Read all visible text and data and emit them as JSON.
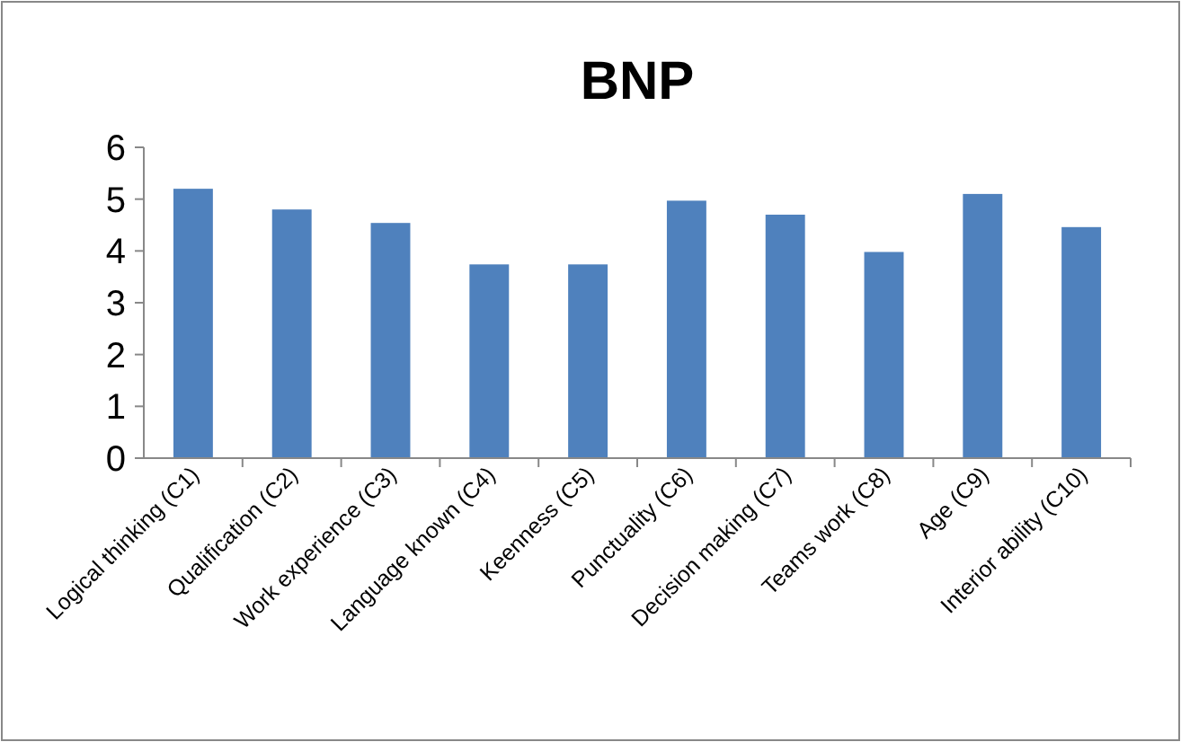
{
  "chart_data": {
    "type": "bar",
    "title": "BNP",
    "categories": [
      "Logical thinking (C1)",
      "Qualification (C2)",
      "Work experience (C3)",
      "Language known (C4)",
      "Keenness (C5)",
      "Punctuality (C6)",
      "Decision making (C7)",
      "Teams work (C8)",
      "Age (C9)",
      "Interior ability (C10)"
    ],
    "values": [
      5.2,
      4.8,
      4.54,
      3.74,
      3.74,
      4.97,
      4.7,
      3.98,
      5.1,
      4.46
    ],
    "color": "#4f81bd",
    "ylim": [
      0,
      6
    ],
    "yticks": [
      0,
      1,
      2,
      3,
      4,
      5,
      6
    ],
    "grid": false
  }
}
